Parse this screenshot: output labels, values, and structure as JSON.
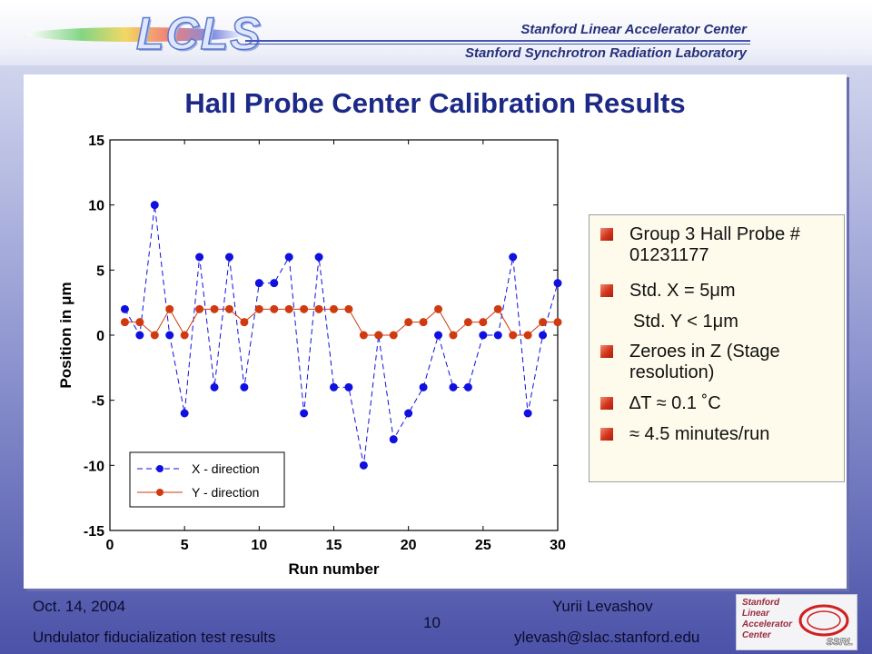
{
  "header": {
    "logo_text": "LCLS",
    "org_line1": "Stanford Linear Accelerator Center",
    "org_line2": "Stanford Synchrotron Radiation Laboratory"
  },
  "slide": {
    "title": "Hall Probe Center Calibration Results",
    "info_items": [
      {
        "text": "Group 3 Hall Probe # 01231177",
        "bullet": true
      },
      {
        "text": "Std. X = 5μm",
        "bullet": true
      },
      {
        "text": "Std. Y < 1μm",
        "bullet": false
      },
      {
        "text": "Zeroes in Z (Stage resolution)",
        "bullet": true
      },
      {
        "text": "∆T ≈ 0.1 ˚C",
        "bullet": true
      },
      {
        "text": "≈ 4.5 minutes/run",
        "bullet": true
      }
    ]
  },
  "footer": {
    "date": "Oct. 14, 2004",
    "subject": "Undulator fiducialization test results",
    "page_number": "10",
    "author": "Yurii Levashov",
    "email": "ylevash@slac.stanford.edu",
    "logo_lines": [
      "Stanford",
      "Linear",
      "Accelerator",
      "Center"
    ],
    "logo_tag": "SSRL"
  },
  "chart_data": {
    "type": "line",
    "title": "",
    "xlabel": "Run number",
    "ylabel": "Position in μm",
    "xlim": [
      0,
      30
    ],
    "ylim": [
      -15,
      15
    ],
    "xticks": [
      0,
      5,
      10,
      15,
      20,
      25,
      30
    ],
    "yticks": [
      -15,
      -10,
      -5,
      0,
      5,
      10,
      15
    ],
    "grid": false,
    "legend_position": "bottom-left",
    "x": [
      1,
      2,
      3,
      4,
      5,
      6,
      7,
      8,
      9,
      10,
      11,
      12,
      13,
      14,
      15,
      16,
      17,
      18,
      19,
      20,
      21,
      22,
      23,
      24,
      25,
      26,
      27,
      28,
      29,
      30
    ],
    "series": [
      {
        "name": "X - direction",
        "color": "#1010e0",
        "line_style": "dashed",
        "values": [
          2,
          0,
          10,
          0,
          -6,
          6,
          -4,
          6,
          -4,
          4,
          4,
          6,
          -6,
          6,
          -4,
          -4,
          -10,
          0,
          -8,
          -6,
          -4,
          0,
          -4,
          -4,
          0,
          0,
          6,
          -6,
          0,
          4
        ]
      },
      {
        "name": "Y - direction",
        "color": "#d03a10",
        "line_style": "solid",
        "values": [
          1,
          1,
          0,
          2,
          0,
          2,
          2,
          2,
          1,
          2,
          2,
          2,
          2,
          2,
          2,
          2,
          0,
          0,
          0,
          1,
          1,
          2,
          0,
          1,
          1,
          2,
          0,
          0,
          1,
          1
        ]
      }
    ]
  }
}
